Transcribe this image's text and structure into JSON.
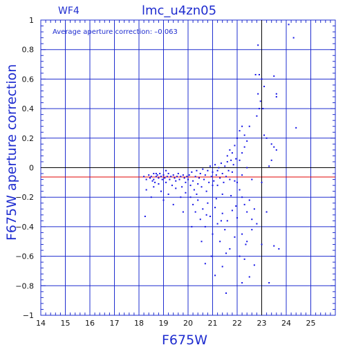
{
  "header": {
    "chip": "WF4",
    "title": "lmc_u4zn05"
  },
  "annotation": {
    "label": "Average aperture correction:",
    "value": "–0.063"
  },
  "colors": {
    "axes": "#1e2ccf",
    "points": "#1010e6",
    "grid": "#1e2ccf",
    "mean_line": "#e00000",
    "zero_line": "#000000"
  },
  "chart_data": {
    "type": "scatter",
    "title": "lmc_u4zn05",
    "xlabel": "F675W",
    "ylabel": "F675W aperture correction",
    "xlim": [
      14,
      26
    ],
    "ylim": [
      -1,
      1
    ],
    "xticks": [
      14,
      15,
      16,
      17,
      18,
      19,
      20,
      21,
      22,
      23,
      24,
      25
    ],
    "yticks": [
      -1,
      -0.8,
      -0.6,
      -0.4,
      -0.2,
      0,
      0.2,
      0.4,
      0.6,
      0.8,
      1
    ],
    "ytick_labels": [
      "−1",
      "−0.8",
      "−0.6",
      "−0.4",
      "−0.2",
      "0",
      "0.2",
      "0.4",
      "0.6",
      "0.8",
      "1"
    ],
    "grid": true,
    "hlines": [
      {
        "y": -0.063,
        "role": "average"
      },
      {
        "y": 0,
        "role": "zero"
      }
    ],
    "vline": {
      "x": 23.0,
      "role": "limit"
    },
    "series": [
      {
        "points": [
          [
            18.2,
            -0.06
          ],
          [
            18.3,
            -0.08
          ],
          [
            18.4,
            -0.05
          ],
          [
            18.45,
            -0.07
          ],
          [
            18.5,
            -0.06
          ],
          [
            18.55,
            -0.09
          ],
          [
            18.6,
            -0.04
          ],
          [
            18.6,
            -0.08
          ],
          [
            18.65,
            -0.1
          ],
          [
            18.7,
            -0.06
          ],
          [
            18.75,
            -0.05
          ],
          [
            18.8,
            -0.07
          ],
          [
            18.8,
            -0.11
          ],
          [
            18.85,
            -0.04
          ],
          [
            18.9,
            -0.06
          ],
          [
            18.95,
            -0.08
          ],
          [
            19.0,
            -0.05
          ],
          [
            19.05,
            -0.07
          ],
          [
            19.1,
            -0.1
          ],
          [
            19.15,
            -0.06
          ],
          [
            19.2,
            -0.04
          ],
          [
            19.25,
            -0.08
          ],
          [
            19.3,
            -0.06
          ],
          [
            19.35,
            -0.12
          ],
          [
            19.4,
            -0.05
          ],
          [
            19.45,
            -0.07
          ],
          [
            19.5,
            -0.09
          ],
          [
            19.55,
            -0.06
          ],
          [
            19.6,
            -0.04
          ],
          [
            19.65,
            -0.08
          ],
          [
            19.7,
            -0.06
          ],
          [
            19.75,
            -0.13
          ],
          [
            19.8,
            -0.05
          ],
          [
            19.85,
            -0.07
          ],
          [
            19.9,
            -0.1
          ],
          [
            19.95,
            -0.06
          ],
          [
            18.3,
            -0.15
          ],
          [
            18.5,
            -0.2
          ],
          [
            18.6,
            -0.13
          ],
          [
            18.9,
            -0.16
          ],
          [
            19.0,
            -0.22
          ],
          [
            19.2,
            -0.18
          ],
          [
            19.4,
            -0.25
          ],
          [
            19.5,
            -0.14
          ],
          [
            19.7,
            -0.2
          ],
          [
            19.8,
            -0.3
          ],
          [
            19.9,
            -0.17
          ],
          [
            18.25,
            -0.33
          ],
          [
            18.7,
            -0.04
          ],
          [
            19.1,
            -0.02
          ],
          [
            20.0,
            -0.08
          ],
          [
            20.05,
            -0.05
          ],
          [
            20.1,
            -0.12
          ],
          [
            20.15,
            -0.03
          ],
          [
            20.2,
            -0.09
          ],
          [
            20.25,
            -0.15
          ],
          [
            20.3,
            -0.06
          ],
          [
            20.35,
            -0.02
          ],
          [
            20.4,
            -0.11
          ],
          [
            20.45,
            -0.07
          ],
          [
            20.5,
            -0.04
          ],
          [
            20.55,
            -0.13
          ],
          [
            20.6,
            -0.01
          ],
          [
            20.65,
            -0.08
          ],
          [
            20.7,
            -0.05
          ],
          [
            20.75,
            -0.16
          ],
          [
            20.8,
            -0.02
          ],
          [
            20.85,
            -0.1
          ],
          [
            20.9,
            0.01
          ],
          [
            20.95,
            -0.06
          ],
          [
            21.0,
            -0.03
          ],
          [
            21.05,
            -0.09
          ],
          [
            21.1,
            0.02
          ],
          [
            21.15,
            -0.05
          ],
          [
            21.2,
            -0.12
          ],
          [
            21.25,
            0.0
          ],
          [
            21.3,
            -0.07
          ],
          [
            21.35,
            0.03
          ],
          [
            21.4,
            -0.04
          ],
          [
            21.45,
            -0.1
          ],
          [
            21.5,
            0.01
          ],
          [
            21.55,
            -0.06
          ],
          [
            21.6,
            0.04
          ],
          [
            21.65,
            -0.02
          ],
          [
            21.7,
            -0.08
          ],
          [
            21.75,
            0.05
          ],
          [
            21.8,
            -0.03
          ],
          [
            21.85,
            0.02
          ],
          [
            21.9,
            -0.09
          ],
          [
            21.95,
            0.06
          ],
          [
            20.1,
            -0.2
          ],
          [
            20.2,
            -0.25
          ],
          [
            20.3,
            -0.3
          ],
          [
            20.4,
            -0.22
          ],
          [
            20.5,
            -0.35
          ],
          [
            20.6,
            -0.28
          ],
          [
            20.7,
            -0.4
          ],
          [
            20.8,
            -0.24
          ],
          [
            20.9,
            -0.33
          ],
          [
            21.0,
            -0.45
          ],
          [
            21.1,
            -0.27
          ],
          [
            21.2,
            -0.38
          ],
          [
            21.3,
            -0.5
          ],
          [
            21.4,
            -0.31
          ],
          [
            21.5,
            -0.42
          ],
          [
            21.6,
            -0.36
          ],
          [
            21.7,
            -0.55
          ],
          [
            21.8,
            -0.29
          ],
          [
            21.9,
            -0.47
          ],
          [
            22.0,
            -0.34
          ],
          [
            20.15,
            -0.4
          ],
          [
            20.35,
            -0.18
          ],
          [
            20.55,
            -0.5
          ],
          [
            20.75,
            -0.32
          ],
          [
            20.95,
            -0.6
          ],
          [
            21.15,
            -0.21
          ],
          [
            21.35,
            -0.36
          ],
          [
            21.55,
            -0.58
          ],
          [
            21.75,
            -0.19
          ],
          [
            21.95,
            -0.26
          ],
          [
            21.6,
            0.08
          ],
          [
            21.7,
            0.12
          ],
          [
            21.8,
            0.1
          ],
          [
            21.9,
            0.15
          ],
          [
            22.0,
            0.2
          ],
          [
            22.1,
            0.05
          ],
          [
            22.2,
            0.1
          ],
          [
            22.3,
            0.14
          ],
          [
            22.1,
            0.25
          ],
          [
            22.2,
            0.28
          ],
          [
            22.3,
            0.22
          ],
          [
            22.4,
            0.18
          ],
          [
            22.0,
            -0.1
          ],
          [
            22.1,
            -0.15
          ],
          [
            22.2,
            -0.2
          ],
          [
            22.3,
            -0.25
          ],
          [
            22.4,
            -0.3
          ],
          [
            22.5,
            -0.22
          ],
          [
            22.6,
            -0.35
          ],
          [
            22.7,
            -0.28
          ],
          [
            22.2,
            -0.45
          ],
          [
            22.4,
            -0.5
          ],
          [
            22.6,
            -0.42
          ],
          [
            22.8,
            -0.38
          ],
          [
            22.1,
            -0.6
          ],
          [
            22.3,
            -0.62
          ],
          [
            22.5,
            -0.74
          ],
          [
            22.7,
            -0.66
          ],
          [
            22.2,
            -0.05
          ],
          [
            22.4,
            0.0
          ],
          [
            22.6,
            -0.08
          ],
          [
            22.8,
            0.35
          ],
          [
            22.9,
            0.4
          ],
          [
            22.95,
            0.45
          ],
          [
            22.85,
            0.5
          ],
          [
            22.75,
            0.63
          ],
          [
            22.9,
            0.63
          ],
          [
            22.85,
            0.83
          ],
          [
            22.5,
            0.28
          ],
          [
            23.0,
            0.6
          ],
          [
            23.1,
            0.22
          ],
          [
            23.2,
            0.2
          ],
          [
            23.4,
            0.16
          ],
          [
            23.5,
            0.14
          ],
          [
            23.6,
            0.5
          ],
          [
            23.6,
            0.48
          ],
          [
            23.5,
            0.62
          ],
          [
            23.6,
            0.12
          ],
          [
            23.4,
            0.05
          ],
          [
            23.3,
            0.01
          ],
          [
            23.1,
            0.55
          ],
          [
            23.05,
            0.4
          ],
          [
            23.0,
            -0.1
          ],
          [
            23.2,
            -0.3
          ],
          [
            23.0,
            -0.52
          ],
          [
            23.3,
            -0.78
          ],
          [
            23.5,
            -0.53
          ],
          [
            23.7,
            -0.55
          ],
          [
            24.1,
            0.97
          ],
          [
            24.3,
            0.88
          ],
          [
            24.4,
            0.27
          ],
          [
            20.7,
            -0.65
          ],
          [
            21.1,
            -0.73
          ],
          [
            21.4,
            -0.67
          ],
          [
            21.55,
            -0.85
          ],
          [
            22.2,
            -0.78
          ],
          [
            22.35,
            -0.52
          ],
          [
            21.0,
            -0.12
          ],
          [
            21.2,
            -0.02
          ],
          [
            21.4,
            -0.18
          ]
        ]
      }
    ]
  }
}
